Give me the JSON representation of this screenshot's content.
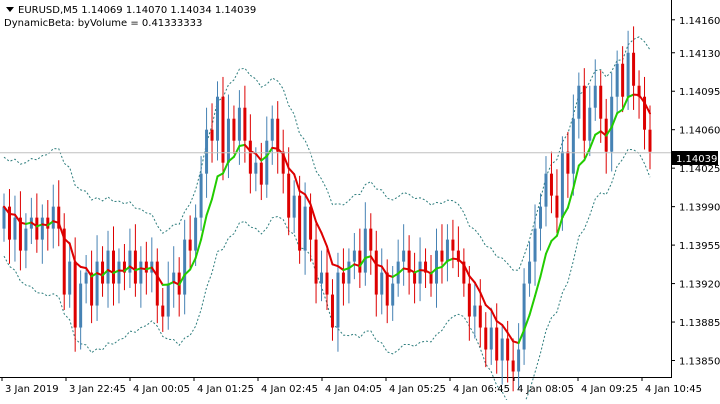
{
  "header": {
    "symbol_line": "EURUSD,M5  1.14069 1.14070 1.14034 1.14039",
    "indicator_line": "DynamicBeta:  byVolume = 0.41333333"
  },
  "current_price": "1.14039",
  "colors": {
    "bull_candle": "#4682b4",
    "bear_candle": "#dd0000",
    "ma_up": "#22cc00",
    "ma_down": "#dd0000",
    "band": "#2e7d7d",
    "price_line": "#c0c0c0"
  },
  "chart_data": {
    "type": "candlestick",
    "y_ticks": [
      "1.14160",
      "1.14130",
      "1.14095",
      "1.14060",
      "1.14025",
      "1.13990",
      "1.13955",
      "1.13920",
      "1.13885",
      "1.13850"
    ],
    "x_ticks": [
      "3 Jan 2019",
      "3 Jan 22:45",
      "4 Jan 00:05",
      "4 Jan 01:25",
      "4 Jan 02:45",
      "4 Jan 04:05",
      "4 Jan 05:25",
      "4 Jan 06:45",
      "4 Jan 08:05",
      "4 Jan 09:25",
      "4 Jan 10:45"
    ],
    "ylim": [
      1.13835,
      1.14178
    ],
    "series": [
      {
        "kind": "candles",
        "values": [
          1.1399,
          1.1396,
          1.1398,
          1.1395,
          1.1397,
          1.1398,
          1.1396,
          1.1398,
          1.1397,
          1.1399,
          1.1397,
          1.1391,
          1.1394,
          1.1388,
          1.1392,
          1.1393,
          1.139,
          1.1394,
          1.1392,
          1.1395,
          1.1392,
          1.1394,
          1.1393,
          1.1395,
          1.1392,
          1.1394,
          1.1393,
          1.1394,
          1.139,
          1.1389,
          1.1392,
          1.1393,
          1.1391,
          1.1396,
          1.1395,
          1.1398,
          1.1402,
          1.1406,
          1.1405,
          1.1409,
          1.1403,
          1.1407,
          1.1405,
          1.1408,
          1.1405,
          1.1402,
          1.1403,
          1.1401,
          1.1405,
          1.1407,
          1.1404,
          1.1402,
          1.1398,
          1.14,
          1.1395,
          1.1399,
          1.1396,
          1.1392,
          1.1393,
          1.1391,
          1.1388,
          1.1393,
          1.1392,
          1.1394,
          1.1395,
          1.1393,
          1.1397,
          1.1395,
          1.1391,
          1.1393,
          1.139,
          1.1392,
          1.1394,
          1.1395,
          1.1393,
          1.1392,
          1.1394,
          1.1393,
          1.1392,
          1.1395,
          1.1394,
          1.1396,
          1.1395,
          1.1394,
          1.1392,
          1.1389,
          1.139,
          1.1388,
          1.1386,
          1.1388,
          1.1385,
          1.1387,
          1.1385,
          1.1384,
          1.1386,
          1.1392,
          1.1394,
          1.1397,
          1.1399,
          1.1402,
          1.14,
          1.1398,
          1.1404,
          1.1402,
          1.1407,
          1.141,
          1.1405,
          1.1408,
          1.141,
          1.1407,
          1.1404,
          1.1409,
          1.1412,
          1.1409,
          1.1413,
          1.141,
          1.1409,
          1.1406,
          1.1404
        ]
      },
      {
        "kind": "line",
        "name": "",
        "values": []
      },
      {
        "kind": "band",
        "name": "",
        "values": []
      }
    ]
  }
}
